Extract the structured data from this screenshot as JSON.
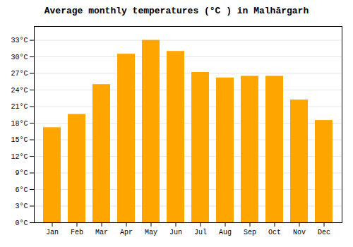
{
  "chart_data": {
    "type": "bar",
    "title": "Average monthly temperatures (°C ) in Malhārgarh",
    "categories": [
      "Jan",
      "Feb",
      "Mar",
      "Apr",
      "May",
      "Jun",
      "Jul",
      "Aug",
      "Sep",
      "Oct",
      "Nov",
      "Dec"
    ],
    "values": [
      17.2,
      19.6,
      25.0,
      30.5,
      33.0,
      31.0,
      27.2,
      26.2,
      26.5,
      26.5,
      22.2,
      18.5
    ],
    "color": "#FFA500",
    "ylim": [
      0,
      35.5
    ],
    "yticks": [
      {
        "value": 0,
        "label": "0°C"
      },
      {
        "value": 3,
        "label": "3°C"
      },
      {
        "value": 6,
        "label": "6°C"
      },
      {
        "value": 9,
        "label": "9°C"
      },
      {
        "value": 12,
        "label": "12°C"
      },
      {
        "value": 15,
        "label": "15°C"
      },
      {
        "value": 18,
        "label": "18°C"
      },
      {
        "value": 21,
        "label": "21°C"
      },
      {
        "value": 24,
        "label": "24°C"
      },
      {
        "value": 27,
        "label": "27°C"
      },
      {
        "value": 30,
        "label": "30°C"
      },
      {
        "value": 33,
        "label": "33°C"
      }
    ],
    "grid": true
  }
}
